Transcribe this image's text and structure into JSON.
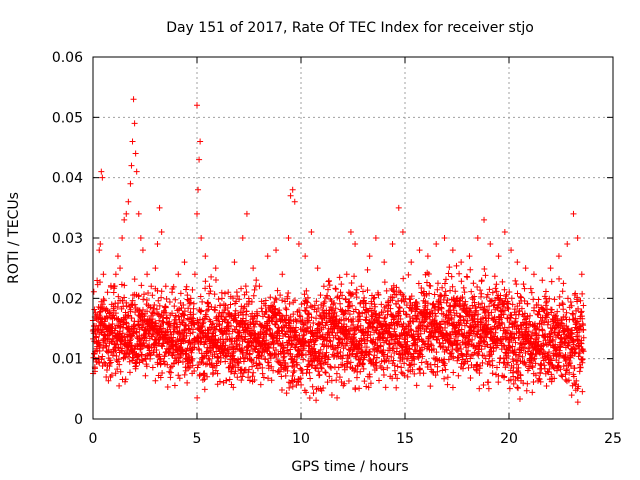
{
  "chart_data": {
    "type": "scatter",
    "title": "Day 151 of 2017, Rate Of TEC Index for receiver stjo",
    "xlabel": "GPS time / hours",
    "ylabel": "ROTI / TECUs",
    "xlim": [
      0,
      25
    ],
    "ylim": [
      0,
      0.06
    ],
    "x_ticks": [
      "0",
      "5",
      "10",
      "15",
      "20",
      "25"
    ],
    "y_ticks": [
      "0",
      "0.01",
      "0.02",
      "0.03",
      "0.04",
      "0.05",
      "0.06"
    ],
    "grid": true,
    "marker": "+",
    "color": "#ff0000",
    "series": [
      {
        "points": [
          [
            0.2,
            0.012
          ],
          [
            0.3,
            0.028
          ],
          [
            0.35,
            0.029
          ],
          [
            0.4,
            0.041
          ],
          [
            0.45,
            0.04
          ],
          [
            0.5,
            0.024
          ],
          [
            0.6,
            0.018
          ],
          [
            0.7,
            0.021
          ],
          [
            0.8,
            0.015
          ],
          [
            0.9,
            0.019
          ],
          [
            1.0,
            0.022
          ],
          [
            1.1,
            0.024
          ],
          [
            1.2,
            0.027
          ],
          [
            1.3,
            0.025
          ],
          [
            1.4,
            0.03
          ],
          [
            1.5,
            0.033
          ],
          [
            1.6,
            0.034
          ],
          [
            1.7,
            0.036
          ],
          [
            1.8,
            0.039
          ],
          [
            1.85,
            0.042
          ],
          [
            1.9,
            0.046
          ],
          [
            1.95,
            0.053
          ],
          [
            2.0,
            0.049
          ],
          [
            2.05,
            0.044
          ],
          [
            2.1,
            0.041
          ],
          [
            2.2,
            0.034
          ],
          [
            2.3,
            0.03
          ],
          [
            2.4,
            0.028
          ],
          [
            2.6,
            0.024
          ],
          [
            2.8,
            0.022
          ],
          [
            3.0,
            0.025
          ],
          [
            3.1,
            0.029
          ],
          [
            3.2,
            0.035
          ],
          [
            3.3,
            0.031
          ],
          [
            3.5,
            0.022
          ],
          [
            3.8,
            0.021
          ],
          [
            4.1,
            0.024
          ],
          [
            4.4,
            0.026
          ],
          [
            4.7,
            0.02
          ],
          [
            4.9,
            0.024
          ],
          [
            5.0,
            0.034
          ],
          [
            5.05,
            0.038
          ],
          [
            5.1,
            0.043
          ],
          [
            5.15,
            0.046
          ],
          [
            5.0,
            0.052
          ],
          [
            5.2,
            0.03
          ],
          [
            5.4,
            0.027
          ],
          [
            5.6,
            0.022
          ],
          [
            5.9,
            0.025
          ],
          [
            6.2,
            0.02
          ],
          [
            6.5,
            0.021
          ],
          [
            6.8,
            0.026
          ],
          [
            7.2,
            0.03
          ],
          [
            7.4,
            0.034
          ],
          [
            7.7,
            0.025
          ],
          [
            8.0,
            0.022
          ],
          [
            8.4,
            0.027
          ],
          [
            8.8,
            0.028
          ],
          [
            9.1,
            0.024
          ],
          [
            9.4,
            0.03
          ],
          [
            9.5,
            0.037
          ],
          [
            9.6,
            0.038
          ],
          [
            9.7,
            0.036
          ],
          [
            9.9,
            0.029
          ],
          [
            10.2,
            0.027
          ],
          [
            10.5,
            0.031
          ],
          [
            10.8,
            0.025
          ],
          [
            11.1,
            0.022
          ],
          [
            11.5,
            0.018
          ],
          [
            11.9,
            0.021
          ],
          [
            12.2,
            0.024
          ],
          [
            12.4,
            0.031
          ],
          [
            12.6,
            0.029
          ],
          [
            12.9,
            0.022
          ],
          [
            13.3,
            0.027
          ],
          [
            13.6,
            0.03
          ],
          [
            14.0,
            0.026
          ],
          [
            14.4,
            0.029
          ],
          [
            14.7,
            0.035
          ],
          [
            14.9,
            0.031
          ],
          [
            15.3,
            0.026
          ],
          [
            15.7,
            0.028
          ],
          [
            16.1,
            0.027
          ],
          [
            16.5,
            0.029
          ],
          [
            16.9,
            0.03
          ],
          [
            17.3,
            0.028
          ],
          [
            17.7,
            0.026
          ],
          [
            18.1,
            0.027
          ],
          [
            18.5,
            0.03
          ],
          [
            18.8,
            0.033
          ],
          [
            19.1,
            0.029
          ],
          [
            19.5,
            0.027
          ],
          [
            19.8,
            0.031
          ],
          [
            20.1,
            0.028
          ],
          [
            20.4,
            0.026
          ],
          [
            20.8,
            0.025
          ],
          [
            21.2,
            0.024
          ],
          [
            21.6,
            0.023
          ],
          [
            22.0,
            0.025
          ],
          [
            22.4,
            0.027
          ],
          [
            22.8,
            0.029
          ],
          [
            23.1,
            0.034
          ],
          [
            23.3,
            0.03
          ],
          [
            23.5,
            0.024
          ]
        ]
      }
    ],
    "band": {
      "description": "dense cloud of ROTI samples",
      "segments": [
        {
          "x_start": 0.0,
          "x_end": 4.9,
          "low": 0.006,
          "high": 0.022
        },
        {
          "x_start": 5.0,
          "x_end": 9.5,
          "low": 0.005,
          "high": 0.022
        },
        {
          "x_start": 9.5,
          "x_end": 11.0,
          "low": 0.004,
          "high": 0.022
        },
        {
          "x_start": 11.0,
          "x_end": 15.5,
          "low": 0.005,
          "high": 0.023
        },
        {
          "x_start": 15.5,
          "x_end": 20.0,
          "low": 0.006,
          "high": 0.024
        },
        {
          "x_start": 20.0,
          "x_end": 23.6,
          "low": 0.004,
          "high": 0.022
        }
      ],
      "gaps": [
        [
          4.9,
          5.0
        ],
        [
          11.0,
          11.5
        ]
      ]
    }
  }
}
